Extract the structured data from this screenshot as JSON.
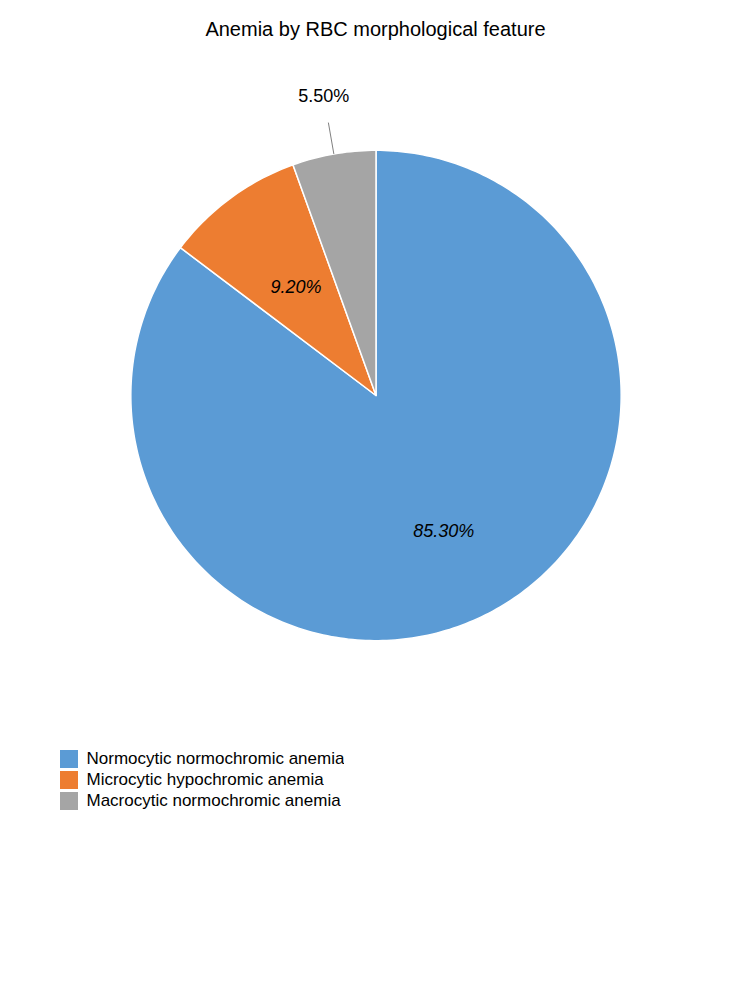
{
  "chart_data": {
    "type": "pie",
    "title": "Anemia by RBC morphological feature",
    "categories": [
      "Normocytic normochromic anemia",
      "Microcytic hypochromic anemia",
      "Macrocytic normochromic anemia"
    ],
    "values": [
      85.3,
      9.2,
      5.5
    ],
    "value_labels": [
      "85.30%",
      "9.20%",
      "5.50%"
    ],
    "colors": [
      "#5B9BD5",
      "#ED7D31",
      "#A5A5A5"
    ],
    "data_labels": true,
    "legend": "lower left"
  }
}
